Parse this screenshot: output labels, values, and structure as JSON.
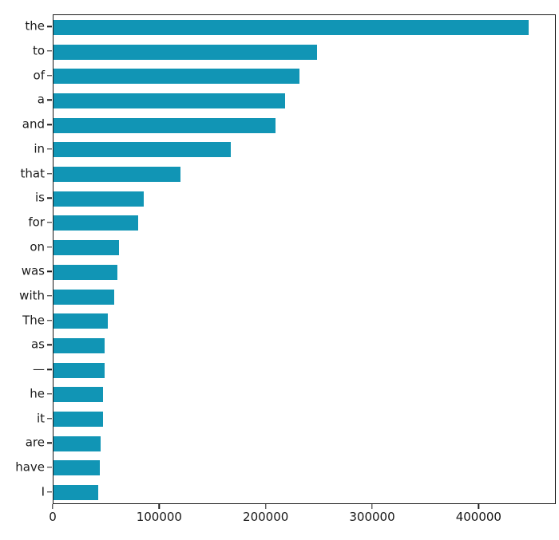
{
  "chart_data": {
    "type": "bar",
    "orientation": "horizontal",
    "title": "",
    "xlabel": "",
    "ylabel": "",
    "categories": [
      "the",
      "to",
      "of",
      "a",
      "and",
      "in",
      "that",
      "is",
      "for",
      "on",
      "was",
      "with",
      "The",
      "as",
      "—",
      "he",
      "it",
      "are",
      "have",
      "I"
    ],
    "values": [
      448000,
      248000,
      232000,
      218000,
      209000,
      167000,
      120000,
      85000,
      80000,
      62000,
      60000,
      57500,
      51000,
      48500,
      48000,
      47000,
      47000,
      44500,
      43500,
      42500
    ],
    "xlim": [
      0,
      472500
    ],
    "x_ticks": [
      0,
      100000,
      200000,
      300000,
      400000
    ],
    "x_tick_labels": [
      "0",
      "100000",
      "200000",
      "300000",
      "400000"
    ],
    "grid": false,
    "legend": false,
    "bar_color": "#1195b5"
  },
  "colors": {
    "bar": "#1195b5",
    "spine": "#1a1a1a",
    "text": "#1a1a1a",
    "background": "#ffffff"
  }
}
